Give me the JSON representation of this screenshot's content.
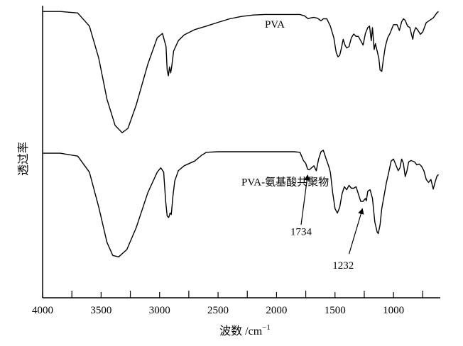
{
  "chart_data": {
    "type": "line",
    "xlabel": "波数 /cm",
    "xlabel_sup": "−1",
    "ylabel": "透过率",
    "xlim": [
      4000,
      600
    ],
    "x_reversed": true,
    "x_ticks": [
      4000,
      3500,
      3000,
      2500,
      2000,
      1500,
      1000
    ],
    "x_minor_ticks": [
      3750,
      3250,
      2750,
      2250,
      1750,
      1250,
      750
    ],
    "grid": false,
    "legend": "none",
    "ylim": [
      0,
      100
    ],
    "series": [
      {
        "name": "PVA",
        "color": "#000000",
        "points": [
          [
            4000,
            98
          ],
          [
            3850,
            98
          ],
          [
            3700,
            97.5
          ],
          [
            3600,
            93
          ],
          [
            3520,
            82
          ],
          [
            3450,
            68
          ],
          [
            3380,
            59
          ],
          [
            3320,
            56.5
          ],
          [
            3270,
            58
          ],
          [
            3200,
            66
          ],
          [
            3100,
            80
          ],
          [
            3020,
            89
          ],
          [
            2975,
            90.5
          ],
          [
            2945,
            86
          ],
          [
            2935,
            78
          ],
          [
            2925,
            76
          ],
          [
            2915,
            79
          ],
          [
            2905,
            77
          ],
          [
            2895,
            79.5
          ],
          [
            2880,
            84.5
          ],
          [
            2840,
            88
          ],
          [
            2790,
            90
          ],
          [
            2700,
            91.8
          ],
          [
            2600,
            93
          ],
          [
            2500,
            94.3
          ],
          [
            2400,
            95.5
          ],
          [
            2300,
            96.3
          ],
          [
            2200,
            96.8
          ],
          [
            2100,
            97
          ],
          [
            2000,
            97
          ],
          [
            1900,
            97
          ],
          [
            1800,
            97
          ],
          [
            1760,
            96.5
          ],
          [
            1730,
            95.5
          ],
          [
            1710,
            95.8
          ],
          [
            1680,
            96
          ],
          [
            1650,
            95.7
          ],
          [
            1620,
            94.8
          ],
          [
            1600,
            95.5
          ],
          [
            1570,
            95.5
          ],
          [
            1540,
            93
          ],
          [
            1510,
            89
          ],
          [
            1490,
            84
          ],
          [
            1475,
            82.5
          ],
          [
            1460,
            83
          ],
          [
            1445,
            85.5
          ],
          [
            1430,
            88.5
          ],
          [
            1415,
            86.5
          ],
          [
            1400,
            85.5
          ],
          [
            1380,
            86
          ],
          [
            1360,
            89
          ],
          [
            1340,
            90.3
          ],
          [
            1320,
            89.5
          ],
          [
            1300,
            89.5
          ],
          [
            1280,
            88
          ],
          [
            1260,
            86.5
          ],
          [
            1240,
            90.5
          ],
          [
            1220,
            92.5
          ],
          [
            1205,
            93
          ],
          [
            1190,
            88
          ],
          [
            1180,
            92.5
          ],
          [
            1165,
            85
          ],
          [
            1155,
            87
          ],
          [
            1140,
            84.5
          ],
          [
            1125,
            82
          ],
          [
            1115,
            78
          ],
          [
            1100,
            77.5
          ],
          [
            1085,
            82
          ],
          [
            1070,
            86
          ],
          [
            1050,
            89
          ],
          [
            1030,
            90.5
          ],
          [
            1000,
            93.5
          ],
          [
            970,
            93.5
          ],
          [
            950,
            91.5
          ],
          [
            930,
            94.5
          ],
          [
            915,
            95.5
          ],
          [
            900,
            95
          ],
          [
            880,
            93
          ],
          [
            860,
            92.5
          ],
          [
            845,
            90
          ],
          [
            835,
            88.5
          ],
          [
            825,
            91
          ],
          [
            810,
            92.5
          ],
          [
            790,
            91.5
          ],
          [
            770,
            90.2
          ],
          [
            750,
            91
          ],
          [
            720,
            94.2
          ],
          [
            690,
            95
          ],
          [
            660,
            95.8
          ],
          [
            630,
            97.5
          ],
          [
            615,
            98
          ]
        ]
      },
      {
        "name": "PVA-氨基酸共聚物",
        "color": "#000000",
        "points": [
          [
            4000,
            49.5
          ],
          [
            3850,
            49.5
          ],
          [
            3700,
            48.5
          ],
          [
            3600,
            43
          ],
          [
            3520,
            31
          ],
          [
            3450,
            19
          ],
          [
            3400,
            14.5
          ],
          [
            3350,
            14
          ],
          [
            3280,
            16.5
          ],
          [
            3200,
            24
          ],
          [
            3100,
            36
          ],
          [
            3020,
            43
          ],
          [
            2990,
            44.5
          ],
          [
            2965,
            43
          ],
          [
            2948,
            33
          ],
          [
            2935,
            28
          ],
          [
            2922,
            27.5
          ],
          [
            2910,
            29
          ],
          [
            2900,
            28.5
          ],
          [
            2885,
            35
          ],
          [
            2870,
            40
          ],
          [
            2840,
            43.5
          ],
          [
            2790,
            45.2
          ],
          [
            2700,
            46.8
          ],
          [
            2640,
            48.8
          ],
          [
            2600,
            49.8
          ],
          [
            2500,
            50
          ],
          [
            2200,
            50
          ],
          [
            2000,
            50
          ],
          [
            1850,
            50
          ],
          [
            1800,
            49.8
          ],
          [
            1770,
            47
          ],
          [
            1750,
            46
          ],
          [
            1734,
            44
          ],
          [
            1720,
            43.8
          ],
          [
            1700,
            44.5
          ],
          [
            1680,
            45.2
          ],
          [
            1660,
            43.5
          ],
          [
            1640,
            47.5
          ],
          [
            1620,
            50
          ],
          [
            1600,
            50.5
          ],
          [
            1580,
            48
          ],
          [
            1555,
            45.2
          ],
          [
            1540,
            43
          ],
          [
            1520,
            36
          ],
          [
            1500,
            30.5
          ],
          [
            1480,
            29
          ],
          [
            1460,
            31
          ],
          [
            1440,
            35.5
          ],
          [
            1420,
            38
          ],
          [
            1400,
            37
          ],
          [
            1380,
            38.5
          ],
          [
            1360,
            37.5
          ],
          [
            1340,
            37.5
          ],
          [
            1320,
            38
          ],
          [
            1300,
            35.5
          ],
          [
            1280,
            33
          ],
          [
            1260,
            33
          ],
          [
            1240,
            34
          ],
          [
            1232,
            33.2
          ],
          [
            1220,
            36.5
          ],
          [
            1200,
            37
          ],
          [
            1180,
            34
          ],
          [
            1160,
            26
          ],
          [
            1140,
            22.5
          ],
          [
            1130,
            22
          ],
          [
            1115,
            25
          ],
          [
            1100,
            30.5
          ],
          [
            1080,
            35
          ],
          [
            1060,
            39.5
          ],
          [
            1040,
            43
          ],
          [
            1020,
            46.8
          ],
          [
            1000,
            47.5
          ],
          [
            980,
            45.5
          ],
          [
            960,
            43.5
          ],
          [
            945,
            44.5
          ],
          [
            930,
            47.5
          ],
          [
            915,
            46
          ],
          [
            900,
            41.5
          ],
          [
            885,
            43.5
          ],
          [
            870,
            46.5
          ],
          [
            850,
            47
          ],
          [
            820,
            46.5
          ],
          [
            800,
            45.5
          ],
          [
            780,
            45.8
          ],
          [
            760,
            45
          ],
          [
            740,
            43.5
          ],
          [
            720,
            40.5
          ],
          [
            700,
            39.5
          ],
          [
            680,
            40.5
          ],
          [
            660,
            37.2
          ],
          [
            645,
            39.5
          ],
          [
            630,
            41.5
          ],
          [
            615,
            42.2
          ]
        ]
      }
    ],
    "annotations": [
      {
        "text": "PVA",
        "x": 2100,
        "y": 92.5,
        "anchor": "start"
      },
      {
        "text": "PVA-氨基酸共聚物",
        "x": 2300,
        "y": 38.5,
        "anchor": "start"
      },
      {
        "text": "1734",
        "x": 1790,
        "y": 21.5,
        "anchor": "middle",
        "arrow_from": [
          1790,
          25
        ],
        "arrow_to": [
          1734,
          42
        ]
      },
      {
        "text": "1232",
        "x": 1430,
        "y": 10,
        "anchor": "middle",
        "arrow_from": [
          1380,
          15
        ],
        "arrow_to": [
          1265,
          30.5
        ]
      }
    ]
  }
}
